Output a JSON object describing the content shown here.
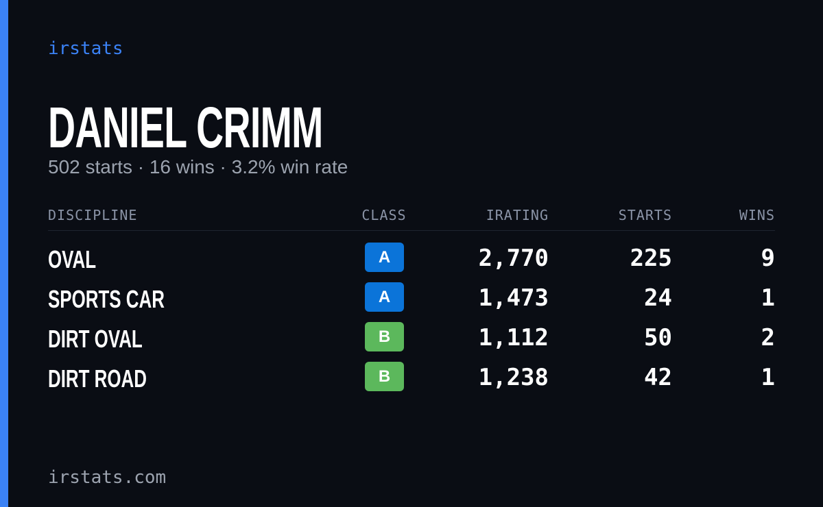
{
  "brand": "irstats",
  "driver": {
    "name": "DANIEL CRIMM",
    "summary": "502 starts · 16 wins · 3.2% win rate"
  },
  "table": {
    "headers": [
      "DISCIPLINE",
      "CLASS",
      "IRATING",
      "STARTS",
      "WINS"
    ],
    "rows": [
      {
        "discipline": "OVAL",
        "class": "A",
        "class_color": "#0b74d9",
        "irating": "2,770",
        "starts": "225",
        "wins": "9"
      },
      {
        "discipline": "SPORTS CAR",
        "class": "A",
        "class_color": "#0b74d9",
        "irating": "1,473",
        "starts": "24",
        "wins": "1"
      },
      {
        "discipline": "DIRT OVAL",
        "class": "B",
        "class_color": "#5cb85c",
        "irating": "1,112",
        "starts": "50",
        "wins": "2"
      },
      {
        "discipline": "DIRT ROAD",
        "class": "B",
        "class_color": "#5cb85c",
        "irating": "1,238",
        "starts": "42",
        "wins": "1"
      }
    ]
  },
  "footer": "irstats.com"
}
